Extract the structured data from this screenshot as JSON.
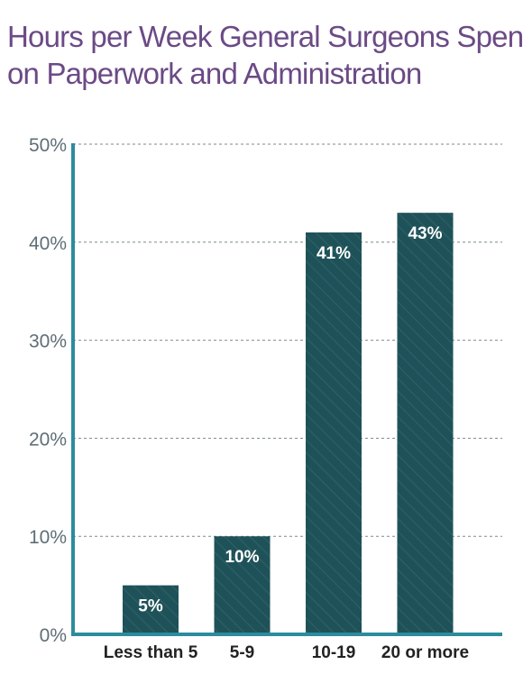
{
  "title_lines": [
    "Hours per Week General Surgeons Spent",
    "on Paperwork and Administration"
  ],
  "colors": {
    "title": "#6b4a86",
    "bar": "#1f5158",
    "axis": "#2c8c9c",
    "grid": "#7a8a92",
    "tick": "#5e6e76",
    "category": "#222222",
    "data_label": "#ffffff"
  },
  "chart_data": {
    "type": "bar",
    "title": "Hours per Week General Surgeons Spent on Paperwork and Administration",
    "categories": [
      "Less than 5",
      "5-9",
      "10-19",
      "20 or more"
    ],
    "values": [
      5,
      10,
      41,
      43
    ],
    "data_labels": [
      "5%",
      "10%",
      "41%",
      "43%"
    ],
    "ylim": [
      0,
      50
    ],
    "yticks": [
      0,
      10,
      20,
      30,
      40,
      50
    ],
    "ytick_labels": [
      "0%",
      "10%",
      "20%",
      "30%",
      "40%",
      "50%"
    ],
    "grid": true,
    "legend": "none"
  }
}
